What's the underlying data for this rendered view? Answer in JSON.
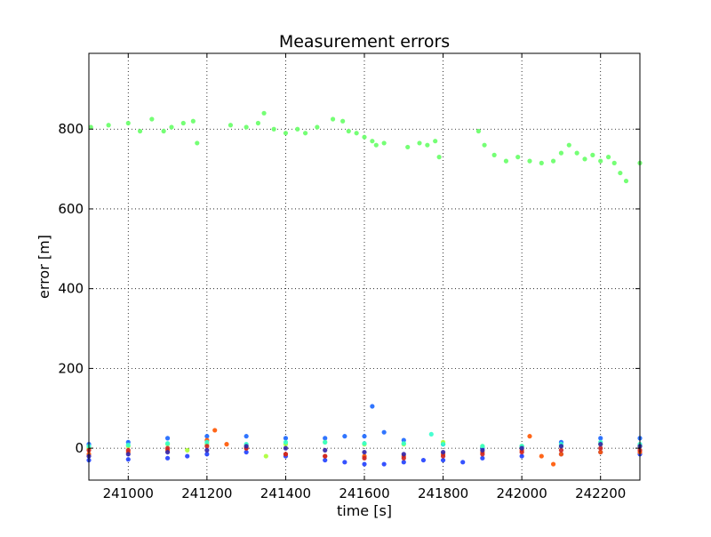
{
  "chart_data": {
    "type": "scatter",
    "title": "Measurement errors",
    "xlabel": "time [s]",
    "ylabel": "error [m]",
    "xlim": [
      240900,
      242300
    ],
    "ylim": [
      -80,
      990
    ],
    "xticks": [
      241000,
      241200,
      241400,
      241600,
      241800,
      242000,
      242200
    ],
    "xtick_labels": [
      "241000",
      "241200",
      "241400",
      "241600",
      "241800",
      "242000",
      "242200"
    ],
    "yticks": [
      0,
      200,
      400,
      600,
      800
    ],
    "ytick_labels": [
      "0",
      "200",
      "400",
      "600",
      "800"
    ],
    "grid": true,
    "legend": "none",
    "series": [
      {
        "color": "#66ff66",
        "x": [
          240905,
          240950,
          241000,
          241030,
          241060,
          241090,
          241110,
          241140,
          241165,
          241175,
          241260,
          241300,
          241330,
          241345,
          241370,
          241400,
          241430,
          241450,
          241480,
          241520,
          241545,
          241560,
          241580,
          241600,
          241620,
          241630,
          241650,
          241710,
          241740,
          241760,
          241780,
          241790,
          241890,
          241905,
          241930,
          241960,
          241990,
          242020,
          242050,
          242080,
          242100,
          242120,
          242140,
          242160,
          242180,
          242200,
          242220,
          242235,
          242250,
          242265,
          242300
        ],
        "y": [
          805,
          810,
          815,
          795,
          825,
          795,
          805,
          815,
          820,
          765,
          810,
          805,
          815,
          840,
          800,
          790,
          800,
          790,
          805,
          825,
          820,
          795,
          790,
          780,
          770,
          760,
          765,
          755,
          765,
          760,
          770,
          730,
          795,
          760,
          735,
          720,
          730,
          720,
          715,
          720,
          740,
          760,
          740,
          725,
          735,
          720,
          730,
          715,
          690,
          670,
          715
        ]
      },
      {
        "color": "#1f3fff",
        "x": [
          240900,
          241000,
          241100,
          241150,
          241200,
          241300,
          241400,
          241500,
          241550,
          241600,
          241650,
          241700,
          241750,
          241800,
          241850,
          241900,
          242000,
          242100,
          242200,
          242300
        ],
        "y": [
          -30,
          -28,
          -25,
          -20,
          -15,
          -10,
          -20,
          -30,
          -35,
          -40,
          -40,
          -35,
          -30,
          -30,
          -35,
          -25,
          -20,
          -15,
          -10,
          -15
        ]
      },
      {
        "color": "#1a66ff",
        "x": [
          240900,
          241000,
          241100,
          241200,
          241300,
          241400,
          241500,
          241550,
          241600,
          241620,
          241650,
          241700,
          241800,
          241900,
          242000,
          242100,
          242200,
          242300
        ],
        "y": [
          10,
          15,
          25,
          30,
          30,
          25,
          25,
          30,
          30,
          105,
          40,
          20,
          10,
          0,
          5,
          15,
          25,
          25
        ]
      },
      {
        "color": "#ff5500",
        "x": [
          240900,
          241000,
          241100,
          241200,
          241220,
          241250,
          241300,
          241400,
          241500,
          241600,
          241700,
          241800,
          241900,
          242000,
          242020,
          242050,
          242080,
          242100,
          242200,
          242300
        ],
        "y": [
          -15,
          -10,
          -5,
          20,
          45,
          10,
          0,
          -15,
          -20,
          -20,
          -20,
          -15,
          -10,
          -5,
          30,
          -20,
          -40,
          -15,
          -10,
          -10
        ]
      },
      {
        "color": "#aaff33",
        "x": [
          240900,
          241000,
          241100,
          241150,
          241200,
          241300,
          241350,
          241400,
          241500,
          241600,
          241700,
          241800,
          241900,
          242000,
          242100,
          242200,
          242300
        ],
        "y": [
          0,
          5,
          10,
          -5,
          10,
          5,
          -20,
          10,
          15,
          10,
          10,
          15,
          5,
          5,
          5,
          10,
          5
        ]
      },
      {
        "color": "#33ffcc",
        "x": [
          240900,
          241000,
          241100,
          241200,
          241300,
          241400,
          241500,
          241600,
          241700,
          241770,
          241800,
          241900,
          242000,
          242100,
          242200,
          242300
        ],
        "y": [
          5,
          8,
          12,
          15,
          10,
          15,
          15,
          12,
          12,
          35,
          10,
          5,
          5,
          10,
          15,
          10
        ]
      },
      {
        "color": "#cc2222",
        "x": [
          240900,
          241000,
          241100,
          241200,
          241300,
          241400,
          241500,
          241600,
          241700,
          241800,
          241900,
          242000,
          242100,
          242200,
          242300
        ],
        "y": [
          -5,
          -5,
          0,
          5,
          0,
          -15,
          -20,
          -25,
          -25,
          -20,
          -15,
          -10,
          -5,
          0,
          -5
        ]
      },
      {
        "color": "#3322aa",
        "x": [
          240900,
          241000,
          241100,
          241200,
          241300,
          241400,
          241500,
          241600,
          241700,
          241800,
          241900,
          242000,
          242100,
          242200,
          242300
        ],
        "y": [
          -20,
          -15,
          -10,
          -5,
          5,
          0,
          -5,
          -10,
          -15,
          -10,
          -5,
          0,
          5,
          10,
          5
        ]
      }
    ]
  }
}
